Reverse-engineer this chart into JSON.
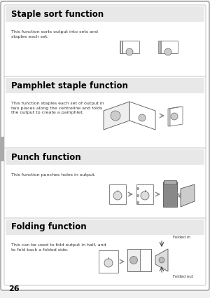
{
  "page_bg": "#f0f0f0",
  "box_bg": "#ffffff",
  "box_border": "#cccccc",
  "title_color": "#000000",
  "text_color": "#333333",
  "page_number": "26",
  "sections": [
    {
      "title": "Staple sort function",
      "body": "This function sorts output into sets and\nstaples each set."
    },
    {
      "title": "Pamphlet staple function",
      "body": "This function staples each set of output in\ntwo places along the centreline and folds\nthe output to create a pamphlet."
    },
    {
      "title": "Punch function",
      "body": "This function punches holes in output."
    },
    {
      "title": "Folding function",
      "body": "This can be used to fold output in half, and\nto fold back a folded side."
    }
  ],
  "folded_in_label": "Folded in",
  "folded_out_label": "Folded out",
  "outer_border": "#999999",
  "tab_color": "#aaaaaa"
}
